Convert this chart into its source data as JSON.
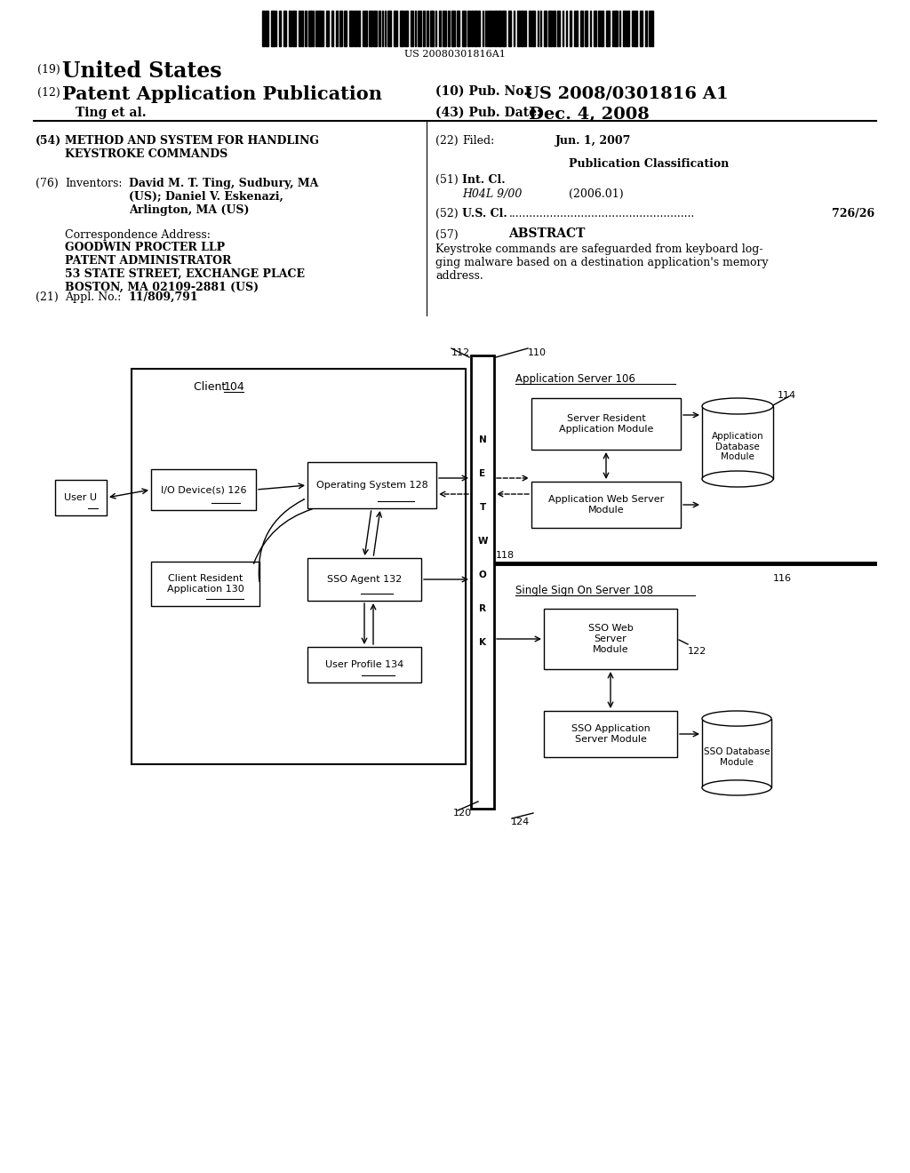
{
  "bg_color": "#ffffff",
  "barcode_text": "US 20080301816A1",
  "title_19": "(19)",
  "title_us": "United States",
  "title_12": "(12)",
  "title_pap": "Patent Application Publication",
  "title_10_label": "(10) Pub. No.:",
  "title_10_value": "US 2008/0301816 A1",
  "title_ting": "Ting et al.",
  "title_43_label": "(43) Pub. Date:",
  "title_43_value": "Dec. 4, 2008",
  "field54_num": "(54)",
  "field54_title": "METHOD AND SYSTEM FOR HANDLING\nKEYSTROKE COMMANDS",
  "field76_num": "(76)",
  "field76_label": "Inventors:",
  "field76_value": "David M. T. Ting, Sudbury, MA\n(US); Daniel V. Eskenazi,\nArlington, MA (US)",
  "corr_label": "Correspondence Address:",
  "corr_value": "GOODWIN PROCTER LLP\nPATENT ADMINISTRATOR\n53 STATE STREET, EXCHANGE PLACE\nBOSTON, MA 02109-2881 (US)",
  "field21_num": "(21)",
  "field21_label": "Appl. No.:",
  "field21_value": "11/809,791",
  "field22_num": "(22)",
  "field22_label": "Filed:",
  "field22_value": "Jun. 1, 2007",
  "pub_class_title": "Publication Classification",
  "field51_num": "(51)",
  "field51_label": "Int. Cl.",
  "field51_value": "H04L 9/00",
  "field51_year": "(2006.01)",
  "field52_num": "(52)",
  "field52_label": "U.S. Cl.",
  "field52_dots": "......................................................",
  "field52_value": "726/26",
  "field57_num": "(57)",
  "field57_label": "ABSTRACT",
  "abstract_text": "Keystroke commands are safeguarded from keyboard log-\nging malware based on a destination application's memory\naddress."
}
